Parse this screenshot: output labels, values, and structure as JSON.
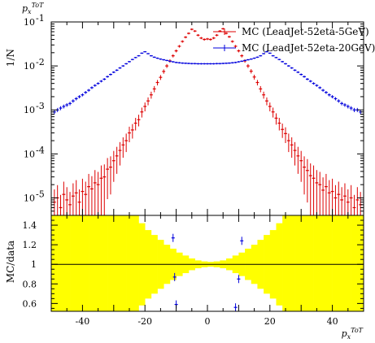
{
  "chart_data": [
    {
      "type": "scatter",
      "panel": "main",
      "annotation": "p_x^{ToT}",
      "ylabel": "1/N",
      "yscale": "log",
      "ylim": [
        4e-06,
        0.1
      ],
      "xlim": [
        -50,
        50
      ],
      "yticks": [
        {
          "value": 0.1,
          "label": "10",
          "exp": "-1"
        },
        {
          "value": 0.01,
          "label": "10",
          "exp": "-2"
        },
        {
          "value": 0.001,
          "label": "10",
          "exp": "-3"
        },
        {
          "value": 0.0001,
          "label": "10",
          "exp": "-4"
        },
        {
          "value": 1e-05,
          "label": "10",
          "exp": "-5"
        }
      ],
      "legend_position": "top-right",
      "series": [
        {
          "name": "MC (LeadJet-52eta-5GeV)",
          "color": "#dd0000",
          "x": [
            -49,
            -48,
            -47,
            -46,
            -45,
            -44,
            -43,
            -42,
            -41,
            -40,
            -39,
            -38,
            -37,
            -36,
            -35,
            -34,
            -33,
            -32,
            -31,
            -30,
            -29,
            -28,
            -27,
            -26,
            -25,
            -24,
            -23,
            -22,
            -21,
            -20,
            -19,
            -18,
            -17,
            -16,
            -15,
            -14,
            -13,
            -12,
            -11,
            -10,
            -9,
            -8,
            -7,
            -6,
            -5,
            -4,
            -3,
            -2,
            -1,
            0,
            1,
            2,
            3,
            4,
            5,
            6,
            7,
            8,
            9,
            10,
            11,
            12,
            13,
            14,
            15,
            16,
            17,
            18,
            19,
            20,
            21,
            22,
            23,
            24,
            25,
            26,
            27,
            28,
            29,
            30,
            31,
            32,
            33,
            34,
            35,
            36,
            37,
            38,
            39,
            40,
            41,
            42,
            43,
            44,
            45,
            46,
            47,
            48,
            49
          ],
          "y": [
            8e-06,
            1e-05,
            6e-06,
            1.2e-05,
            9e-06,
            7e-06,
            1.1e-05,
            1.3e-05,
            8e-06,
            1.4e-05,
            1.2e-05,
            1.8e-05,
            1.6e-05,
            2.2e-05,
            2e-05,
            2.8e-05,
            3e-05,
            4.5e-05,
            5e-05,
            7e-05,
            9e-05,
            0.00012,
            0.00016,
            0.0002,
            0.0003,
            0.00035,
            0.0005,
            0.0006,
            0.0009,
            0.0012,
            0.0016,
            0.0022,
            0.003,
            0.0042,
            0.0055,
            0.0075,
            0.01,
            0.013,
            0.017,
            0.022,
            0.028,
            0.036,
            0.045,
            0.055,
            0.068,
            0.062,
            0.05,
            0.043,
            0.04,
            0.041,
            0.04,
            0.043,
            0.05,
            0.062,
            0.07,
            0.055,
            0.046,
            0.036,
            0.028,
            0.022,
            0.017,
            0.013,
            0.01,
            0.0076,
            0.0056,
            0.0042,
            0.003,
            0.0022,
            0.0016,
            0.0012,
            0.0009,
            0.00065,
            0.0005,
            0.00036,
            0.00029,
            0.0002,
            0.00016,
            0.00012,
            9e-05,
            7e-05,
            5e-05,
            4.2e-05,
            3.2e-05,
            2.8e-05,
            2.2e-05,
            2e-05,
            1.5e-05,
            1.8e-05,
            1.3e-05,
            1.4e-05,
            1e-05,
            1.2e-05,
            9e-06,
            1.1e-05,
            8e-06,
            1e-05,
            6e-06,
            9e-06,
            7e-06
          ]
        },
        {
          "name": "MC (LeadJet-52eta-20GeV)",
          "color": "#0000dd",
          "x": [
            -49,
            -48,
            -47,
            -46,
            -45,
            -44,
            -43,
            -42,
            -41,
            -40,
            -39,
            -38,
            -37,
            -36,
            -35,
            -34,
            -33,
            -32,
            -31,
            -30,
            -29,
            -28,
            -27,
            -26,
            -25,
            -24,
            -23,
            -22,
            -21,
            -20,
            -19,
            -18,
            -17,
            -16,
            -15,
            -14,
            -13,
            -12,
            -11,
            -10,
            -9,
            -8,
            -7,
            -6,
            -5,
            -4,
            -3,
            -2,
            -1,
            0,
            1,
            2,
            3,
            4,
            5,
            6,
            7,
            8,
            9,
            10,
            11,
            12,
            13,
            14,
            15,
            16,
            17,
            18,
            19,
            20,
            21,
            22,
            23,
            24,
            25,
            26,
            27,
            28,
            29,
            30,
            31,
            32,
            33,
            34,
            35,
            36,
            37,
            38,
            39,
            40,
            41,
            42,
            43,
            44,
            45,
            46,
            47,
            48,
            49
          ],
          "y": [
            0.0009,
            0.001,
            0.0011,
            0.0012,
            0.0013,
            0.0014,
            0.0016,
            0.0018,
            0.002,
            0.0022,
            0.0025,
            0.0028,
            0.0032,
            0.0036,
            0.004,
            0.0045,
            0.005,
            0.0057,
            0.0064,
            0.0072,
            0.008,
            0.009,
            0.01,
            0.0112,
            0.0125,
            0.014,
            0.0155,
            0.017,
            0.0195,
            0.021,
            0.019,
            0.017,
            0.0158,
            0.015,
            0.0143,
            0.0138,
            0.0133,
            0.0128,
            0.0124,
            0.012,
            0.0118,
            0.0116,
            0.0115,
            0.0114,
            0.0113,
            0.0113,
            0.0112,
            0.0112,
            0.0112,
            0.0112,
            0.0112,
            0.0112,
            0.0113,
            0.0113,
            0.0114,
            0.0115,
            0.0116,
            0.0118,
            0.012,
            0.0124,
            0.0128,
            0.0133,
            0.0138,
            0.0143,
            0.015,
            0.0158,
            0.017,
            0.019,
            0.021,
            0.0195,
            0.017,
            0.0155,
            0.014,
            0.0125,
            0.0112,
            0.01,
            0.009,
            0.008,
            0.0072,
            0.0064,
            0.0057,
            0.005,
            0.0045,
            0.004,
            0.0036,
            0.0032,
            0.0028,
            0.0025,
            0.0022,
            0.002,
            0.0018,
            0.0016,
            0.0014,
            0.0013,
            0.0012,
            0.0011,
            0.001,
            0.001,
            0.0009
          ]
        }
      ]
    },
    {
      "type": "scatter",
      "panel": "ratio",
      "ylabel": "MC/data",
      "xlabel": "p_x^{ToT}",
      "xlim": [
        -50,
        50
      ],
      "ylim": [
        0.52,
        1.5
      ],
      "xticks": [
        -40,
        -20,
        0,
        20,
        40
      ],
      "yticks": [
        0.6,
        0.8,
        1,
        1.2,
        1.4
      ],
      "reference_line": 1,
      "band_color": "#ffff00",
      "band": {
        "x": [
          -50,
          -48,
          -46,
          -44,
          -42,
          -40,
          -38,
          -36,
          -34,
          -32,
          -30,
          -28,
          -26,
          -24,
          -22,
          -20,
          -18,
          -16,
          -14,
          -12,
          -10,
          -8,
          -6,
          -4,
          -2,
          0,
          2,
          4,
          6,
          8,
          10,
          12,
          14,
          16,
          18,
          20,
          22,
          24,
          26,
          28,
          30,
          32,
          34,
          36,
          38,
          40,
          42,
          44,
          46,
          48,
          50
        ],
        "half_width": [
          0.6,
          0.6,
          0.6,
          0.6,
          0.6,
          0.6,
          0.6,
          0.6,
          0.6,
          0.6,
          0.6,
          0.6,
          0.55,
          0.5,
          0.42,
          0.35,
          0.3,
          0.25,
          0.2,
          0.16,
          0.12,
          0.09,
          0.06,
          0.04,
          0.03,
          0.025,
          0.03,
          0.04,
          0.06,
          0.09,
          0.12,
          0.16,
          0.2,
          0.25,
          0.3,
          0.35,
          0.42,
          0.5,
          0.55,
          0.6,
          0.6,
          0.6,
          0.6,
          0.6,
          0.6,
          0.6,
          0.6,
          0.6,
          0.6,
          0.6,
          0.6
        ]
      },
      "series": [
        {
          "name": "",
          "color": "#0000dd",
          "x": [
            -11,
            -10.5,
            -10,
            9,
            10,
            11
          ],
          "y": [
            1.27,
            0.87,
            0.59,
            0.56,
            0.85,
            1.24
          ]
        }
      ]
    }
  ]
}
